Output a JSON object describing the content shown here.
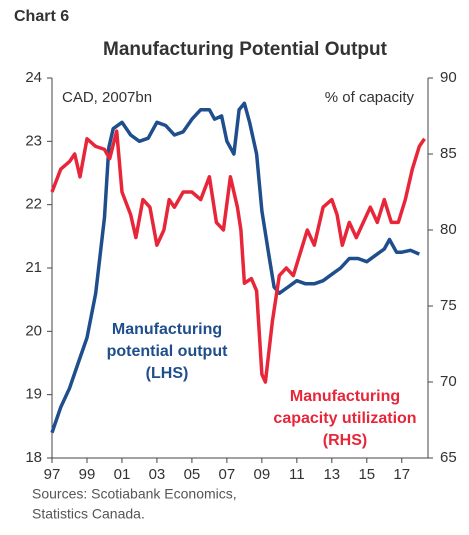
{
  "chart_data": {
    "type": "line",
    "header": "Chart 6",
    "title": "Manufacturing Potential Output",
    "y_axis_label": "CAD, 2007bn",
    "y2_axis_label": "% of capacity",
    "source_lines": [
      "Sources: Scotiabank Economics,",
      "Statistics Canada."
    ],
    "xlim": [
      1997,
      2018.5
    ],
    "xticks": [
      {
        "value": 1997,
        "label": "97"
      },
      {
        "value": 1999,
        "label": "99"
      },
      {
        "value": 2001,
        "label": "01"
      },
      {
        "value": 2003,
        "label": "03"
      },
      {
        "value": 2005,
        "label": "05"
      },
      {
        "value": 2007,
        "label": "07"
      },
      {
        "value": 2009,
        "label": "09"
      },
      {
        "value": 2011,
        "label": "11"
      },
      {
        "value": 2013,
        "label": "13"
      },
      {
        "value": 2015,
        "label": "15"
      },
      {
        "value": 2017,
        "label": "17"
      }
    ],
    "ylim": [
      18,
      24
    ],
    "yticks": [
      18,
      19,
      20,
      21,
      22,
      23,
      24
    ],
    "y2lim": [
      65,
      90
    ],
    "y2ticks": [
      65,
      70,
      75,
      80,
      85,
      90
    ],
    "series": [
      {
        "label_lines": [
          "Manufacturing",
          "potential output",
          "(LHS)"
        ],
        "color": "#1f4e8c",
        "axis": "y",
        "x": [
          1997,
          1997.5,
          1998,
          1998.5,
          1999,
          1999.5,
          2000,
          2000.25,
          2000.5,
          2001,
          2001.5,
          2002,
          2002.5,
          2003,
          2003.5,
          2004,
          2004.5,
          2005,
          2005.5,
          2006,
          2006.3,
          2006.7,
          2007,
          2007.4,
          2007.7,
          2008,
          2008.3,
          2008.7,
          2009,
          2009.4,
          2009.7,
          2010,
          2010.5,
          2011,
          2011.5,
          2012,
          2012.5,
          2013,
          2013.5,
          2014,
          2014.5,
          2015,
          2015.5,
          2016,
          2016.3,
          2016.7,
          2017,
          2017.5,
          2018
        ],
        "values": [
          18.4,
          18.8,
          19.1,
          19.5,
          19.9,
          20.6,
          21.8,
          22.9,
          23.2,
          23.3,
          23.1,
          23.0,
          23.05,
          23.3,
          23.25,
          23.1,
          23.15,
          23.35,
          23.5,
          23.5,
          23.35,
          23.4,
          23.0,
          22.8,
          23.5,
          23.6,
          23.3,
          22.8,
          21.9,
          21.2,
          20.7,
          20.6,
          20.7,
          20.8,
          20.75,
          20.75,
          20.8,
          20.9,
          21.0,
          21.15,
          21.15,
          21.1,
          21.2,
          21.3,
          21.45,
          21.25,
          21.25,
          21.28,
          21.22
        ]
      },
      {
        "label_lines": [
          "Manufacturing",
          "capacity utilization",
          "(RHS)"
        ],
        "color": "#e8263a",
        "axis": "y2",
        "x": [
          1997,
          1997.5,
          1998,
          1998.3,
          1998.6,
          1999,
          1999.5,
          2000,
          2000.3,
          2000.7,
          2001,
          2001.5,
          2001.8,
          2002.2,
          2002.6,
          2003,
          2003.4,
          2003.7,
          2004,
          2004.5,
          2005,
          2005.5,
          2006,
          2006.4,
          2006.8,
          2007.2,
          2007.6,
          2007.8,
          2008,
          2008.4,
          2008.7,
          2009,
          2009.2,
          2009.6,
          2010,
          2010.4,
          2010.8,
          2011.2,
          2011.6,
          2012,
          2012.5,
          2013,
          2013.3,
          2013.6,
          2014,
          2014.4,
          2014.8,
          2015.2,
          2015.6,
          2016,
          2016.4,
          2016.8,
          2017.2,
          2017.6,
          2018,
          2018.3
        ],
        "values": [
          82.5,
          84,
          84.5,
          85,
          83.5,
          86,
          85.5,
          85.3,
          84.7,
          86.5,
          82.5,
          81,
          79.5,
          82,
          81.5,
          79,
          80,
          82,
          81.5,
          82.5,
          82.5,
          82,
          83.5,
          80.5,
          80,
          83.5,
          81.5,
          80,
          76.5,
          76.8,
          76,
          70.5,
          70,
          74,
          77,
          77.5,
          77,
          78.5,
          80,
          79,
          81.5,
          82,
          81,
          79,
          80.5,
          79.5,
          80.5,
          81.5,
          80.5,
          82,
          80.5,
          80.5,
          82,
          84,
          85.5,
          86
        ]
      }
    ]
  }
}
